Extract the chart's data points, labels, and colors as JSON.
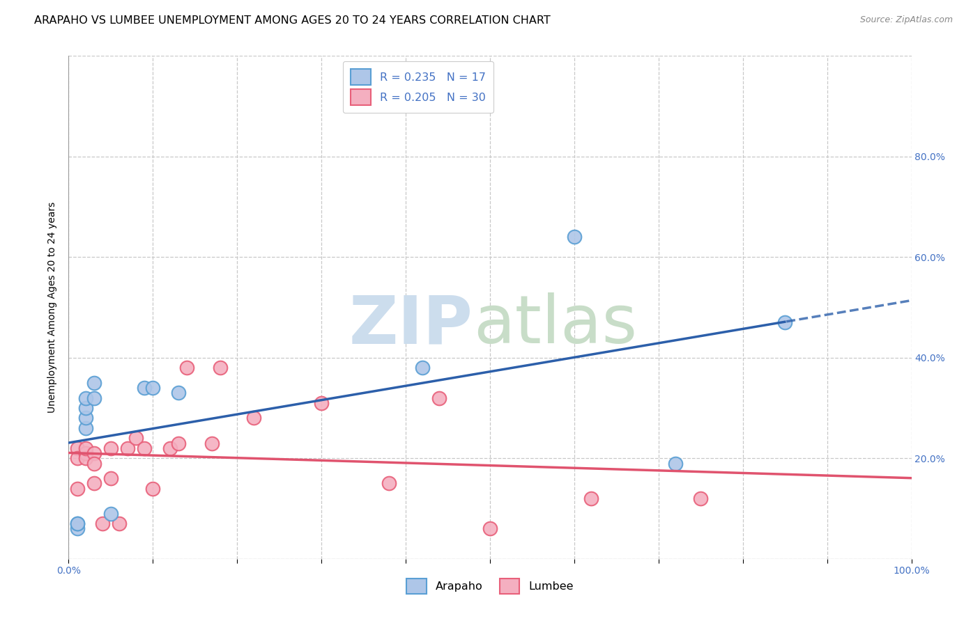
{
  "title": "ARAPAHO VS LUMBEE UNEMPLOYMENT AMONG AGES 20 TO 24 YEARS CORRELATION CHART",
  "source": "Source: ZipAtlas.com",
  "ylabel": "Unemployment Among Ages 20 to 24 years",
  "xlim": [
    0,
    1.0
  ],
  "ylim": [
    0,
    1.0
  ],
  "arapaho_color": "#aec6e8",
  "lumbee_color": "#f4afc0",
  "arapaho_edge": "#5a9fd4",
  "lumbee_edge": "#e8607a",
  "trend_arapaho_color": "#2c5faa",
  "trend_lumbee_color": "#e0536e",
  "R_arapaho": 0.235,
  "N_arapaho": 17,
  "R_lumbee": 0.205,
  "N_lumbee": 30,
  "arapaho_x": [
    0.01,
    0.01,
    0.01,
    0.02,
    0.02,
    0.02,
    0.02,
    0.03,
    0.03,
    0.05,
    0.09,
    0.1,
    0.13,
    0.42,
    0.6,
    0.72,
    0.85
  ],
  "arapaho_y": [
    0.06,
    0.07,
    0.07,
    0.26,
    0.28,
    0.3,
    0.32,
    0.32,
    0.35,
    0.09,
    0.34,
    0.34,
    0.33,
    0.38,
    0.64,
    0.19,
    0.47
  ],
  "lumbee_x": [
    0.01,
    0.01,
    0.01,
    0.02,
    0.02,
    0.02,
    0.02,
    0.03,
    0.03,
    0.03,
    0.04,
    0.05,
    0.05,
    0.06,
    0.07,
    0.08,
    0.09,
    0.1,
    0.12,
    0.13,
    0.14,
    0.17,
    0.18,
    0.22,
    0.3,
    0.38,
    0.44,
    0.5,
    0.62,
    0.75
  ],
  "lumbee_y": [
    0.22,
    0.2,
    0.14,
    0.21,
    0.21,
    0.2,
    0.22,
    0.21,
    0.19,
    0.15,
    0.07,
    0.16,
    0.22,
    0.07,
    0.22,
    0.24,
    0.22,
    0.14,
    0.22,
    0.23,
    0.38,
    0.23,
    0.38,
    0.28,
    0.31,
    0.15,
    0.32,
    0.06,
    0.12,
    0.12
  ],
  "background_color": "#ffffff",
  "grid_color": "#c8c8c8",
  "title_fontsize": 11.5,
  "label_fontsize": 10,
  "legend_fontsize": 11.5,
  "tick_label_color": "#4472c4",
  "watermark_zip_color": "#ccdded",
  "watermark_atlas_color": "#c8ddc8"
}
